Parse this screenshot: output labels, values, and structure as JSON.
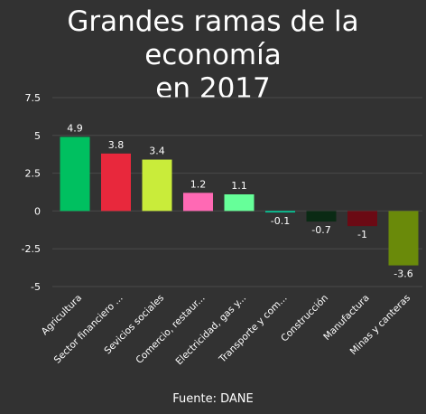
{
  "title": {
    "line1": "Grandes ramas de la economía",
    "line2": "en 2017"
  },
  "source": "Fuente: DANE",
  "chart_data": {
    "type": "bar",
    "categories": [
      "Agricultura",
      "Sector financiero ...",
      "Sevicios sociales",
      "Comercio, restaur...",
      "Electricidad, gas y...",
      "Transporte y com...",
      "Construcción",
      "Manufactura",
      "Minas y canteras"
    ],
    "values": [
      4.9,
      3.8,
      3.4,
      1.2,
      1.1,
      -0.1,
      -0.7,
      -1,
      -3.6
    ],
    "value_labels": [
      "4.9",
      "3.8",
      "3.4",
      "1.2",
      "1.1",
      "-0.1",
      "-0.7",
      "-1",
      "-3.6"
    ],
    "colors": [
      "#00c060",
      "#e8283c",
      "#c9ec3a",
      "#ff69b4",
      "#66ff99",
      "#00cc99",
      "#0a2a14",
      "#6b0a14",
      "#6a8a0a"
    ],
    "yticks": [
      "7.5",
      "5",
      "2.5",
      "0",
      "-2.5",
      "-5"
    ],
    "ytick_values": [
      7.5,
      5,
      2.5,
      0,
      -2.5,
      -5
    ],
    "ylim": [
      -5,
      7.5
    ],
    "grid": true,
    "gridline_color": "#4a4a4a",
    "xlabel": "",
    "ylabel": ""
  }
}
